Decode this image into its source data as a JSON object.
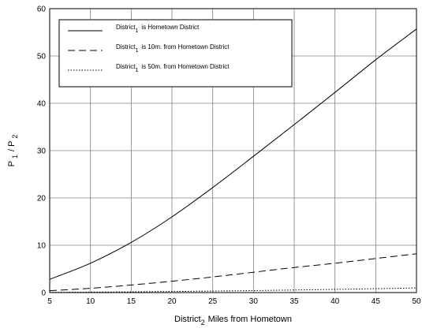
{
  "chart_data": {
    "type": "line",
    "xlabel": {
      "main": "District",
      "sub": "2",
      "rest": "Miles from Hometown"
    },
    "ylabel": {
      "p1": "P",
      "s1": "1",
      "slash": "/ P",
      "s2": "2"
    },
    "xlim": [
      5,
      50
    ],
    "ylim": [
      0,
      60
    ],
    "xticks": [
      5,
      10,
      15,
      20,
      25,
      30,
      35,
      40,
      45,
      50
    ],
    "yticks": [
      0,
      10,
      20,
      30,
      40,
      50,
      60
    ],
    "grid": true,
    "legend_position": "top-left",
    "x": [
      5,
      10,
      15,
      20,
      25,
      30,
      35,
      40,
      45,
      50
    ],
    "series": [
      {
        "legend_main": "District",
        "legend_sub": "1",
        "legend_rest": "is Hometown District",
        "style": "solid",
        "values": [
          2.8,
          6.2,
          10.6,
          16.0,
          22.2,
          28.8,
          35.5,
          42.3,
          49.2,
          55.7
        ]
      },
      {
        "legend_main": "District",
        "legend_sub": "1",
        "legend_rest": "is 10m. from Hometown District",
        "style": "dashed",
        "values": [
          0.4,
          0.9,
          1.6,
          2.4,
          3.3,
          4.3,
          5.3,
          6.2,
          7.2,
          8.2
        ]
      },
      {
        "legend_main": "District",
        "legend_sub": "1",
        "legend_rest": "is 50m. from Hometown District",
        "style": "dotted",
        "values": [
          0.05,
          0.1,
          0.16,
          0.23,
          0.32,
          0.42,
          0.54,
          0.67,
          0.82,
          0.98
        ]
      }
    ],
    "colors": {
      "line": "#000000",
      "grid": "#808080",
      "background": "#ffffff"
    }
  }
}
